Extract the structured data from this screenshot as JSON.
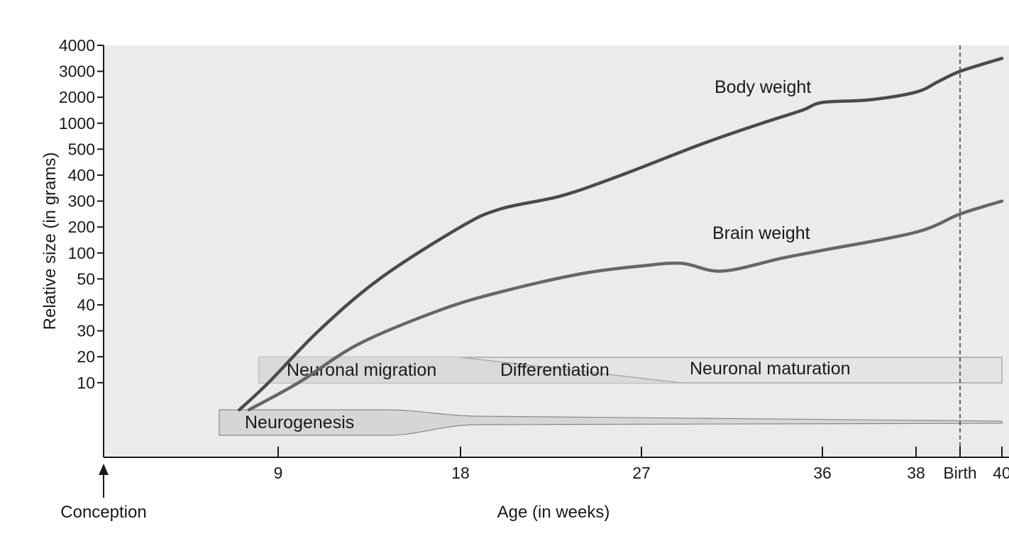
{
  "chart_data": {
    "type": "line",
    "xlabel": "Age (in weeks)",
    "ylabel": "Relative size (in grams)",
    "x_ticks": [
      "9",
      "18",
      "27",
      "36",
      "38",
      "Birth",
      "40"
    ],
    "y_ticks": [
      "4000",
      "3000",
      "2000",
      "1000",
      "500",
      "400",
      "300",
      "200",
      "100",
      "50",
      "40",
      "30",
      "20",
      "10"
    ],
    "y_scale": "categorical (uneven) – tick labels spaced equally",
    "grid": false,
    "legend": "labels placed directly on the lines",
    "birth_week": 40,
    "conception_label": "Conception",
    "series": [
      {
        "name": "Body weight",
        "points": [
          {
            "week": 7,
            "grams": 0
          },
          {
            "week": 8.5,
            "grams": 10
          },
          {
            "week": 11,
            "grams": 30
          },
          {
            "week": 14,
            "grams": 50
          },
          {
            "week": 18,
            "grams": 200
          },
          {
            "week": 20,
            "grams": 270
          },
          {
            "week": 23,
            "grams": 320
          },
          {
            "week": 26,
            "grams": 400
          },
          {
            "week": 30,
            "grams": 600
          },
          {
            "week": 33,
            "grams": 1000
          },
          {
            "week": 35,
            "grams": 1500
          },
          {
            "week": 36,
            "grams": 1800
          },
          {
            "week": 37,
            "grams": 1900
          },
          {
            "week": 38,
            "grams": 2200
          },
          {
            "week": 39,
            "grams": 2600
          },
          {
            "week": 40,
            "grams": 3000
          },
          {
            "week": 41,
            "grams": 3500
          }
        ]
      },
      {
        "name": "Brain weight",
        "points": [
          {
            "week": 7.5,
            "grams": 0
          },
          {
            "week": 10,
            "grams": 10
          },
          {
            "week": 13,
            "grams": 25
          },
          {
            "week": 17,
            "grams": 38
          },
          {
            "week": 20,
            "grams": 45
          },
          {
            "week": 24,
            "grams": 60
          },
          {
            "week": 27,
            "grams": 75
          },
          {
            "week": 29,
            "grams": 80
          },
          {
            "week": 31,
            "grams": 65
          },
          {
            "week": 34,
            "grams": 90
          },
          {
            "week": 36,
            "grams": 110
          },
          {
            "week": 38,
            "grams": 180
          },
          {
            "week": 40,
            "grams": 250
          },
          {
            "week": 41,
            "grams": 300
          }
        ]
      }
    ],
    "phases": [
      {
        "name": "Neurogenesis"
      },
      {
        "name": "Neuronal migration"
      },
      {
        "name": "Differentiation"
      },
      {
        "name": "Neuronal maturation"
      }
    ],
    "colors": {
      "plot_background": "#ebebeb",
      "series_line": "#555555",
      "band_fill": "#d6d6d6",
      "band_light": "#e4e4e4",
      "axis": "#1a1a1a"
    }
  }
}
